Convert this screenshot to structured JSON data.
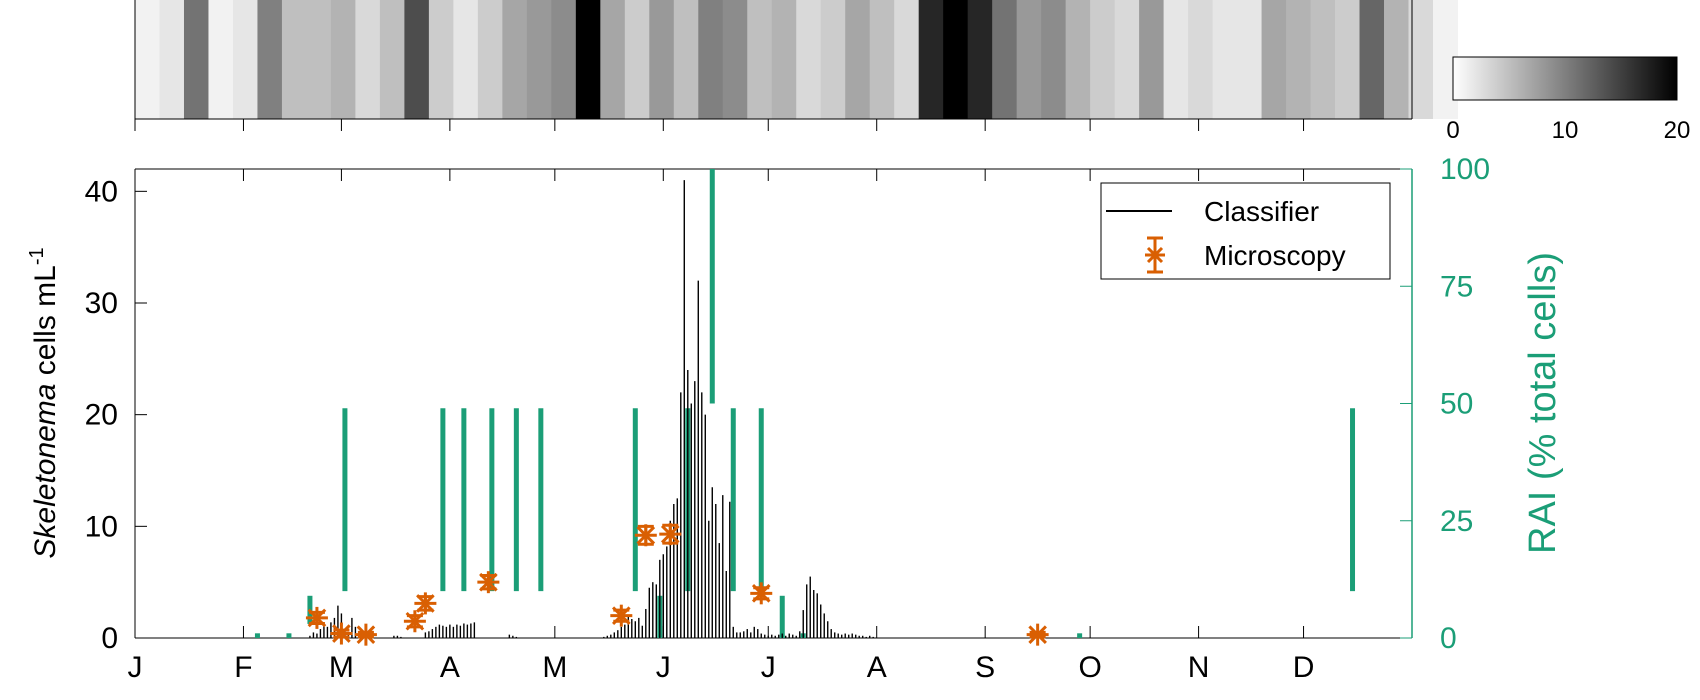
{
  "colors": {
    "axis": "#000000",
    "classifier": "#000000",
    "microscopy": "#d95f02",
    "rai": "#1b9e77",
    "heat_low": "#ffffff",
    "heat_high": "#000000"
  },
  "chart_data": [
    {
      "type": "heatmap",
      "description_role": "top heat strip, weekly values",
      "x_unit": "day of year",
      "weeks_start_day": 1,
      "week_length_days": 7,
      "values": [
        1,
        2,
        11,
        1,
        2,
        10,
        5,
        5,
        6,
        3,
        5,
        14,
        4,
        2,
        4,
        7,
        8,
        9,
        20,
        7,
        4,
        8,
        5,
        10,
        9,
        5,
        6,
        3,
        4,
        7,
        5,
        3,
        17,
        20,
        17,
        11,
        8,
        9,
        6,
        4,
        3,
        8,
        2,
        3,
        2,
        2,
        7,
        6,
        5,
        4,
        12,
        6,
        3,
        1
      ],
      "colorbar": {
        "ticks": [
          0,
          10,
          20
        ],
        "range": [
          0,
          20
        ]
      }
    },
    {
      "type": "bar",
      "x_unit": "day of year",
      "xlim": [
        1,
        366
      ],
      "x_ticks": [
        1,
        32,
        60,
        91,
        121,
        152,
        182,
        213,
        244,
        274,
        305,
        335
      ],
      "x_tick_labels": [
        "J",
        "F",
        "M",
        "A",
        "M",
        "J",
        "J",
        "A",
        "S",
        "O",
        "N",
        "D"
      ],
      "ylabel_italic": "Skeletonema",
      "ylabel_rest": " cells mL",
      "ylabel_sup": "-1",
      "ylim": [
        0,
        42
      ],
      "y_ticks": [
        0,
        10,
        20,
        30,
        40
      ],
      "y2label": "RAI (% total cells)",
      "y2lim": [
        0,
        100
      ],
      "y2_ticks": [
        0,
        25,
        50,
        75,
        100
      ],
      "legend": {
        "position": "top-right",
        "entries": [
          "Classifier",
          "Microscopy"
        ]
      },
      "series": [
        {
          "name": "Classifier",
          "style": "spikes",
          "x": [
            51,
            52,
            53,
            54,
            55,
            56,
            57,
            58,
            59,
            60,
            61,
            62,
            63,
            64,
            65,
            66,
            67,
            68,
            69,
            75,
            76,
            77,
            84,
            85,
            86,
            87,
            88,
            89,
            90,
            91,
            92,
            93,
            94,
            95,
            96,
            97,
            98,
            108,
            109,
            110,
            135,
            136,
            137,
            138,
            139,
            140,
            141,
            142,
            143,
            144,
            145,
            146,
            147,
            148,
            149,
            150,
            151,
            152,
            153,
            154,
            155,
            156,
            157,
            158,
            159,
            160,
            161,
            162,
            163,
            164,
            165,
            166,
            167,
            168,
            169,
            170,
            171,
            172,
            173,
            174,
            175,
            176,
            177,
            178,
            179,
            180,
            181,
            182,
            183,
            184,
            185,
            186,
            187,
            188,
            189,
            190,
            191,
            192,
            193,
            194,
            195,
            196,
            197,
            198,
            199,
            200,
            201,
            202,
            203,
            204,
            205,
            206,
            207,
            208,
            209,
            210,
            211,
            212
          ],
          "values": [
            0.2,
            0.5,
            0.4,
            0.8,
            1.2,
            1.0,
            1.4,
            1.8,
            2.9,
            2.2,
            0.8,
            0.5,
            1.8,
            1.0,
            0.6,
            0.4,
            0.3,
            0.2,
            0.1,
            0.2,
            0.2,
            0.1,
            0.5,
            0.6,
            0.8,
            1.0,
            1.2,
            1.1,
            1.0,
            1.2,
            1.0,
            1.2,
            1.1,
            1.3,
            1.2,
            1.3,
            1.4,
            0.3,
            0.2,
            0.1,
            0.1,
            0.2,
            0.3,
            0.5,
            0.7,
            1.0,
            1.2,
            2.0,
            1.7,
            1.5,
            1.8,
            1.1,
            2.6,
            4.5,
            5.0,
            4.8,
            7.0,
            7.5,
            8.2,
            10.5,
            12.0,
            12.5,
            22.0,
            41.0,
            24.0,
            21.0,
            23.0,
            32.0,
            22.0,
            20.0,
            10.5,
            13.5,
            12.0,
            8.5,
            12.8,
            6.0,
            12.2,
            1.0,
            0.5,
            0.5,
            0.6,
            0.8,
            0.5,
            1.0,
            0.8,
            0.4,
            0.3,
            0.2,
            0.3,
            0.2,
            0.3,
            0.4,
            0.2,
            0.4,
            0.3,
            0.2,
            0.6,
            2.5,
            4.8,
            5.5,
            4.3,
            4.0,
            3.0,
            2.2,
            1.5,
            0.8,
            0.5,
            0.4,
            0.3,
            0.4,
            0.3,
            0.4,
            0.3,
            0.2,
            0.2,
            0.1,
            0.2,
            0.1
          ]
        },
        {
          "name": "Microscopy",
          "style": "marker-with-errorbar",
          "x": [
            53,
            60,
            67,
            81,
            84,
            102,
            140,
            147,
            154,
            180,
            259
          ],
          "values": [
            1.8,
            0.4,
            0.3,
            1.5,
            3.1,
            5.0,
            2.0,
            9.2,
            9.3,
            4.0,
            0.3
          ],
          "errors": [
            0.5,
            0.3,
            0.2,
            0.5,
            0.6,
            0.6,
            0.5,
            0.8,
            0.8,
            0.5,
            0.2
          ]
        },
        {
          "axis": "right",
          "style": "vertical-ranges",
          "x": [
            36,
            45,
            51,
            61,
            89,
            95,
            103,
            110,
            117,
            144,
            151,
            159,
            166,
            172,
            180,
            186,
            192,
            271,
            349
          ],
          "low": [
            0,
            0,
            3,
            10,
            10,
            10,
            10,
            10,
            10,
            10,
            0,
            10,
            50,
            10,
            10,
            0,
            0,
            0,
            10
          ],
          "high": [
            1,
            1,
            9,
            49,
            49,
            49,
            49,
            49,
            49,
            49,
            9,
            49,
            100,
            49,
            49,
            9,
            1,
            1,
            49
          ]
        }
      ]
    }
  ]
}
